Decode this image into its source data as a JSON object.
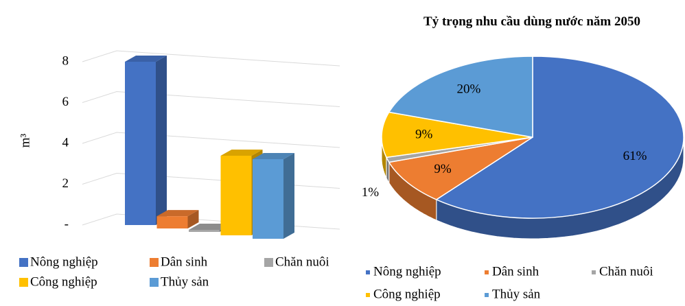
{
  "chart_data": [
    {
      "type": "bar3d",
      "y_label": "m³",
      "series": [
        {
          "name": "Nông nghiệp",
          "color": "#4472c4",
          "values": [
            8.0
          ]
        },
        {
          "name": "Dân sinh",
          "color": "#ed7d31",
          "values": [
            0.6
          ]
        },
        {
          "name": "Chăn nuôi",
          "color": "#a5a5a5",
          "values": [
            0.1
          ]
        },
        {
          "name": "Công nghiệp",
          "color": "#ffc000",
          "values": [
            3.9
          ]
        },
        {
          "name": "Thủy sản",
          "color": "#5b9bd5",
          "values": [
            3.9
          ]
        }
      ],
      "ylim": [
        0,
        8
      ],
      "yticks": [
        {
          "value": 0,
          "label": "-"
        },
        2,
        4,
        6,
        8
      ],
      "grid": true
    },
    {
      "type": "pie3d",
      "title": "Tỷ trọng nhu cầu dùng nước năm 2050",
      "categories": [
        "Nông nghiệp",
        "Dân sinh",
        "Chăn nuôi",
        "Công nghiệp",
        "Thủy sản"
      ],
      "values": [
        61,
        9,
        1,
        9,
        20
      ],
      "value_labels": [
        "61%",
        "9%",
        "1%",
        "9%",
        "20%"
      ],
      "colors": [
        "#4472c4",
        "#ed7d31",
        "#a5a5a5",
        "#ffc000",
        "#5b9bd5"
      ]
    }
  ]
}
